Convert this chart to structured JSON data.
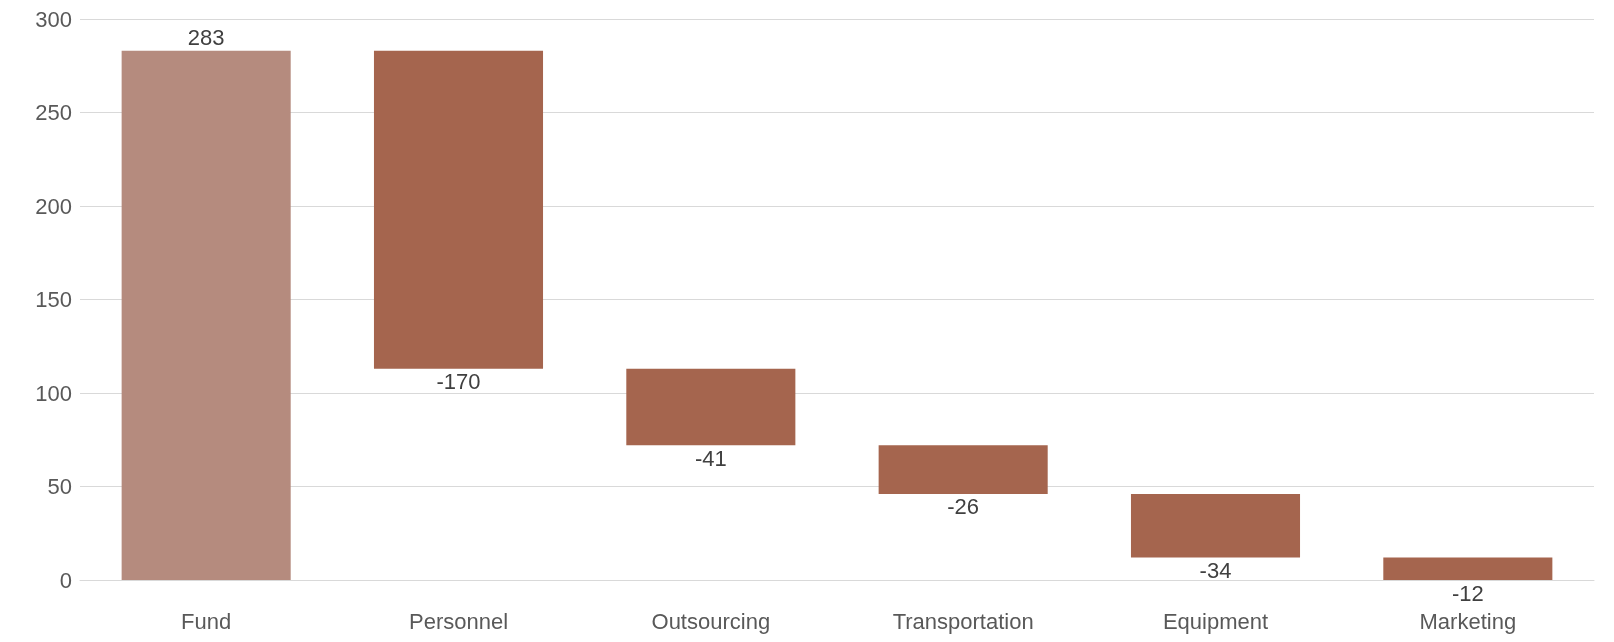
{
  "chart_data": {
    "type": "bar",
    "categories": [
      "Fund",
      "Personnel",
      "Outsourcing",
      "Transportation",
      "Equipment",
      "Marketing"
    ],
    "values": [
      283,
      -170,
      -41,
      -26,
      -34,
      -12
    ],
    "base": [
      0,
      283,
      113,
      72,
      46,
      12
    ],
    "colors": [
      "#b58b7e",
      "#a5654e",
      "#a5654e",
      "#a5654e",
      "#a5654e",
      "#a5654e"
    ],
    "ylim": [
      0,
      300
    ],
    "yticks": [
      0,
      50,
      100,
      150,
      200,
      250,
      300
    ],
    "grid": "y",
    "data_labels": true
  }
}
